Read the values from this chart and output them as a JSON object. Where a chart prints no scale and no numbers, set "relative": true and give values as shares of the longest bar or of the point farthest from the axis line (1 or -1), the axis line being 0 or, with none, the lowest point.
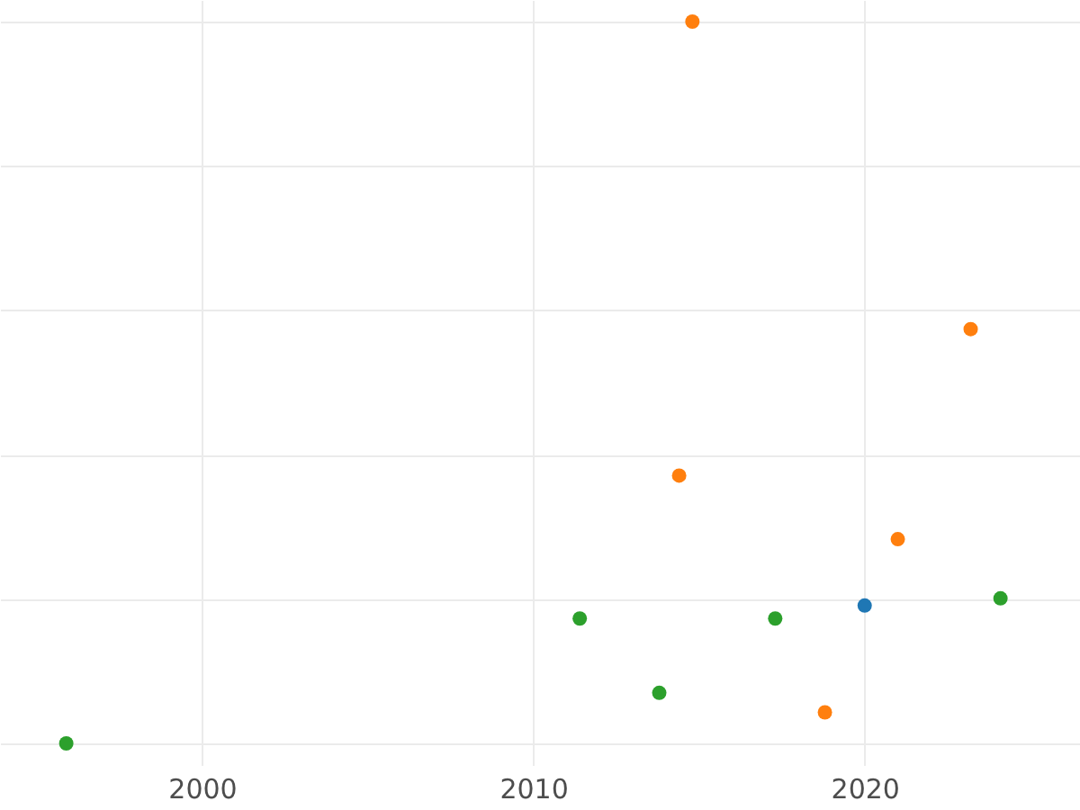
{
  "chart_data": {
    "type": "scatter",
    "relative": true,
    "xlim": [
      1993.9,
      2026.5
    ],
    "xticks": [
      2000,
      2010,
      2020
    ],
    "grid": true,
    "marker": "circle",
    "series": [
      {
        "color": "#ff7f0e",
        "x": [
          2014.8,
          2023.2,
          2014.4,
          2021.0,
          2018.8
        ],
        "values": [
          1.0,
          0.574,
          0.371,
          0.283,
          0.043
        ]
      },
      {
        "color": "#2ca02c",
        "x": [
          1995.9,
          2011.4,
          2013.8,
          2017.3,
          2024.1
        ],
        "values": [
          0,
          0.173,
          0.07,
          0.173,
          0.201
        ]
      },
      {
        "color": "#1f77b4",
        "x": [
          2020.0
        ],
        "values": [
          0.191
        ]
      }
    ]
  }
}
